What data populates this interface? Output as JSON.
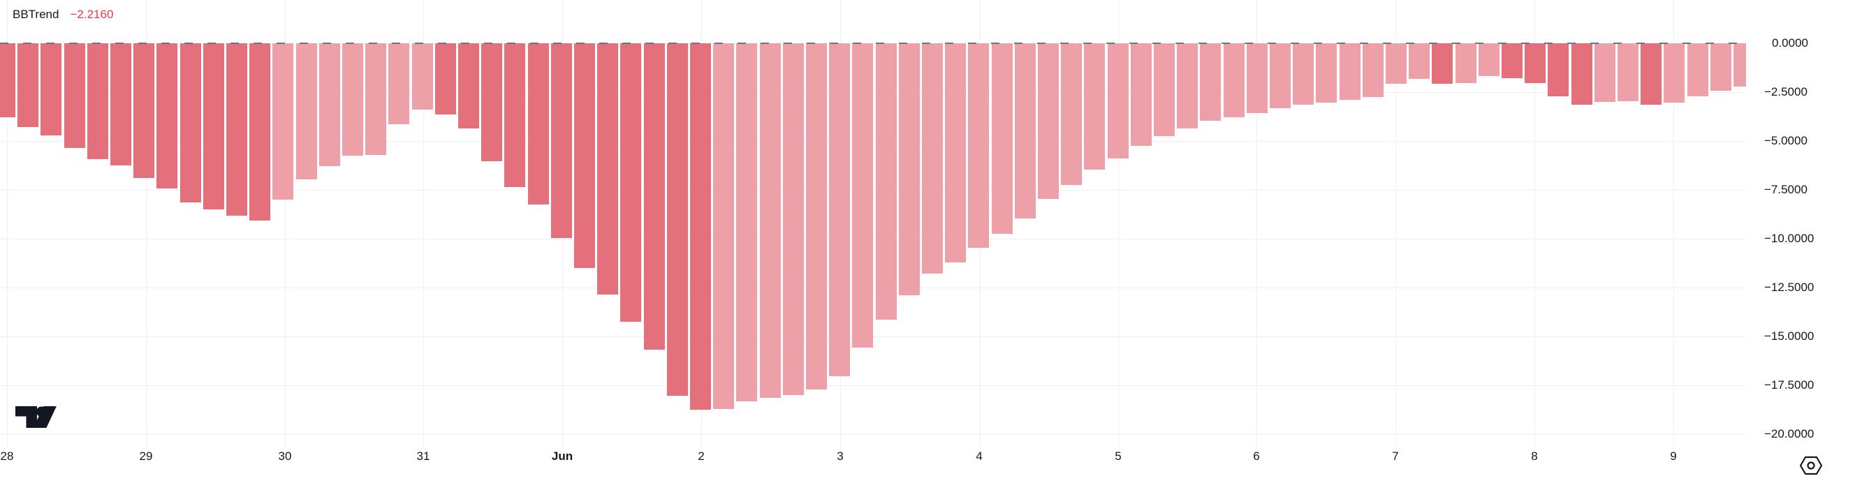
{
  "legend": {
    "indicator": "BBTrend",
    "value": "−2.2160"
  },
  "colors": {
    "bar_falling": "#e3707a",
    "bar_rising": "#eda0a8",
    "value_text": "#f23645",
    "axis_text": "#131722",
    "grid": "#eef0f3",
    "zero_line": "#70737e",
    "background": "#ffffff",
    "logo": "#131722"
  },
  "icons": {
    "logo": "tradingview-logo",
    "scale_settings": "hexagon-settings-icon"
  },
  "y_axis": {
    "labels": [
      "0.0000",
      "−2.5000",
      "−5.0000",
      "−7.5000",
      "−10.0000",
      "−12.5000",
      "−15.0000",
      "−17.5000",
      "−20.0000"
    ]
  },
  "x_axis": {
    "labels": [
      "28",
      "29",
      "30",
      "31",
      "Jun",
      "2",
      "3",
      "4",
      "5",
      "6",
      "7",
      "8",
      "9"
    ],
    "bold_label": "Jun",
    "bold_index": 4
  },
  "chart_data": {
    "type": "bar",
    "title": "BBTrend",
    "last_value": -2.216,
    "ylabel": "",
    "xlabel": "",
    "ylim": [
      -20,
      0
    ],
    "y_ticks": [
      0,
      -2.5,
      -5,
      -7.5,
      -10,
      -12.5,
      -15,
      -17.5,
      -20
    ],
    "x_tick_labels": [
      "28",
      "29",
      "30",
      "31",
      "Jun",
      "2",
      "3",
      "4",
      "5",
      "6",
      "7",
      "8",
      "9"
    ],
    "bars_per_day_tick": 6,
    "grid": true,
    "zero_line": "dashed",
    "values": [
      -3.79,
      -4.29,
      -4.71,
      -5.36,
      -5.93,
      -6.26,
      -6.89,
      -7.44,
      -8.14,
      -8.5,
      -8.82,
      -9.07,
      -8.0,
      -6.96,
      -6.3,
      -5.75,
      -5.7,
      -4.14,
      -3.39,
      -3.64,
      -4.36,
      -6.04,
      -7.36,
      -8.25,
      -9.96,
      -11.5,
      -12.85,
      -14.24,
      -15.68,
      -18.05,
      -18.74,
      -18.71,
      -18.32,
      -18.14,
      -18.0,
      -17.72,
      -17.05,
      -15.58,
      -14.15,
      -12.88,
      -11.78,
      -11.2,
      -10.46,
      -9.75,
      -8.95,
      -7.96,
      -7.25,
      -6.48,
      -5.88,
      -5.26,
      -4.75,
      -4.36,
      -3.98,
      -3.77,
      -3.56,
      -3.32,
      -3.14,
      -3.05,
      -2.9,
      -2.76,
      -2.07,
      -1.81,
      -2.07,
      -2.05,
      -1.68,
      -1.78,
      -2.05,
      -2.7,
      -3.14,
      -3.0,
      -2.95,
      -3.13,
      -3.05,
      -2.73,
      -2.43,
      -2.216
    ],
    "falling": [
      1,
      1,
      1,
      1,
      1,
      1,
      1,
      1,
      1,
      1,
      1,
      1,
      0,
      0,
      0,
      0,
      0,
      0,
      0,
      1,
      1,
      1,
      1,
      1,
      1,
      1,
      1,
      1,
      1,
      1,
      1,
      0,
      0,
      0,
      0,
      0,
      0,
      0,
      0,
      0,
      0,
      0,
      0,
      0,
      0,
      0,
      0,
      0,
      0,
      0,
      0,
      0,
      0,
      0,
      0,
      0,
      0,
      0,
      0,
      0,
      0,
      0,
      1,
      0,
      0,
      1,
      1,
      1,
      1,
      0,
      0,
      1,
      0,
      0,
      0,
      0
    ]
  }
}
